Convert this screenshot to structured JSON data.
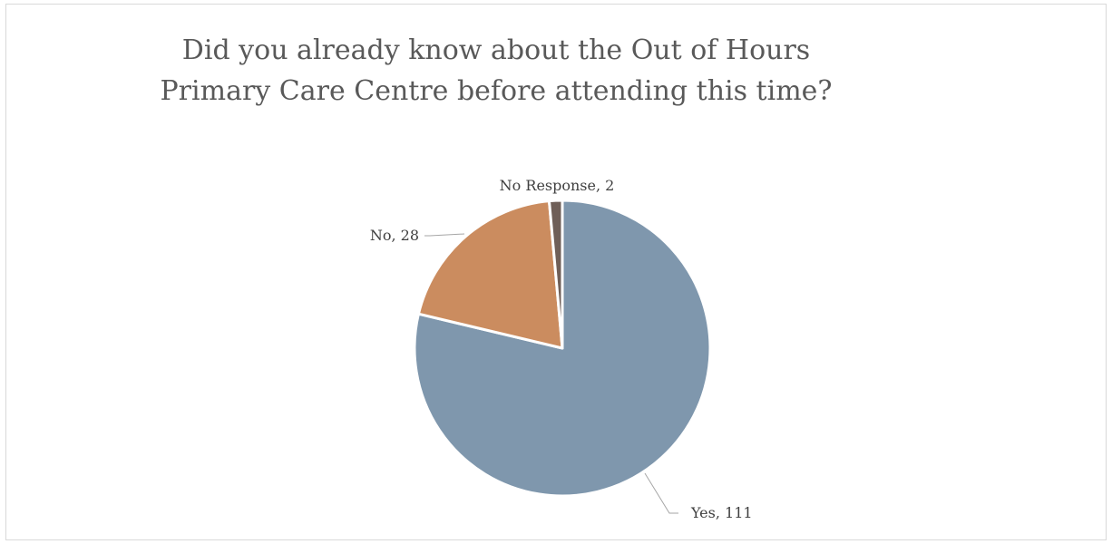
{
  "chart_data": {
    "type": "pie",
    "title": "Did you already know about the Out of Hours Primary Care Centre before attending this time?",
    "categories": [
      "Yes",
      "No",
      "No Response"
    ],
    "values": [
      111,
      28,
      2
    ],
    "colors": [
      "#7f97ad",
      "#cb8c5f",
      "#6f5f58"
    ],
    "data_labels": [
      "Yes, 111",
      "No, 28",
      "No Response, 2"
    ],
    "legend": "none"
  }
}
